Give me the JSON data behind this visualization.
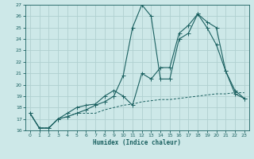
{
  "title": "",
  "xlabel": "Humidex (Indice chaleur)",
  "bg_color": "#cde8e8",
  "grid_color": "#b0d0d0",
  "line_color": "#1a6060",
  "xlim": [
    -0.5,
    23.5
  ],
  "ylim": [
    16,
    27
  ],
  "xticks": [
    0,
    1,
    2,
    3,
    4,
    5,
    6,
    7,
    8,
    9,
    10,
    11,
    12,
    13,
    14,
    15,
    16,
    17,
    18,
    19,
    20,
    21,
    22,
    23
  ],
  "yticks": [
    16,
    17,
    18,
    19,
    20,
    21,
    22,
    23,
    24,
    25,
    26,
    27
  ],
  "line1_x": [
    0,
    1,
    2,
    3,
    4,
    5,
    6,
    7,
    8,
    9,
    10,
    11,
    12,
    13,
    14,
    15,
    16,
    17,
    18,
    19,
    20,
    21,
    22,
    23
  ],
  "line1_y": [
    17.5,
    16.2,
    16.2,
    17.0,
    17.2,
    17.5,
    17.8,
    18.2,
    18.5,
    19.0,
    20.8,
    25.0,
    27.0,
    26.0,
    20.5,
    20.5,
    24.0,
    24.5,
    26.2,
    25.0,
    23.5,
    21.2,
    19.2,
    18.8
  ],
  "line2_x": [
    0,
    1,
    2,
    3,
    4,
    5,
    6,
    7,
    8,
    9,
    10,
    11,
    12,
    13,
    14,
    15,
    16,
    17,
    18,
    19,
    20,
    21,
    22,
    23
  ],
  "line2_y": [
    17.5,
    16.2,
    16.2,
    17.0,
    17.5,
    18.0,
    18.2,
    18.3,
    19.0,
    19.5,
    19.0,
    18.2,
    21.0,
    20.5,
    21.5,
    21.5,
    24.5,
    25.2,
    26.2,
    25.5,
    25.0,
    21.2,
    19.5,
    18.8
  ],
  "line3_x": [
    0,
    1,
    2,
    3,
    4,
    5,
    6,
    7,
    8,
    9,
    10,
    11,
    12,
    13,
    14,
    15,
    16,
    17,
    18,
    19,
    20,
    21,
    22,
    23
  ],
  "line3_y": [
    17.5,
    16.2,
    16.2,
    17.0,
    17.2,
    17.5,
    17.5,
    17.5,
    17.8,
    18.0,
    18.2,
    18.3,
    18.5,
    18.6,
    18.7,
    18.7,
    18.8,
    18.9,
    19.0,
    19.1,
    19.2,
    19.2,
    19.3,
    19.3
  ]
}
